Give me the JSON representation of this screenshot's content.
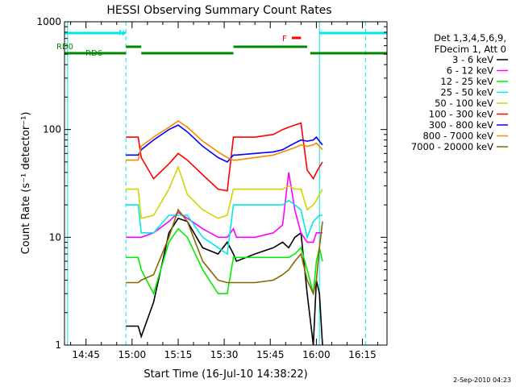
{
  "chart_data": {
    "type": "line",
    "title": "HESSI Observing Summary Count Rates",
    "xlabel": "Start Time (16-Jul-10 14:38:22)",
    "ylabel": "Count Rate (s⁻¹ detector⁻¹)",
    "ylim": [
      1,
      1000
    ],
    "yscale": "log",
    "xlim": [
      "14:38",
      "16:23"
    ],
    "x_ticks": [
      "14:45",
      "15:00",
      "15:15",
      "15:30",
      "15:45",
      "16:00",
      "16:15"
    ],
    "y_ticks": [
      "1",
      "10",
      "100",
      "1000"
    ],
    "legend_position": "right",
    "legend_header": [
      "Det 1,3,4,5,6,9,",
      "FDecim 1, Att 0"
    ],
    "timestamp": "2-Sep-2010 04:23",
    "x": [
      "14:38",
      "14:58",
      "14:59",
      "15:02",
      "15:03",
      "15:07",
      "15:12",
      "15:15",
      "15:18",
      "15:23",
      "15:28",
      "15:31",
      "15:33",
      "15:34",
      "15:40",
      "15:46",
      "15:49",
      "15:51",
      "15:53",
      "15:55",
      "15:57",
      "15:59",
      "16:00",
      "16:01",
      "16:02"
    ],
    "series": [
      {
        "name": "3 - 6 keV",
        "color": "#000000",
        "values": [
          null,
          1.5,
          1.5,
          1.5,
          1.2,
          2.5,
          11,
          15,
          14,
          8,
          7,
          9,
          7,
          6,
          7,
          8,
          9,
          8,
          10,
          11,
          3,
          1,
          4,
          3,
          1
        ]
      },
      {
        "name": "6 - 12 keV",
        "color": "#ff00ff",
        "values": [
          null,
          10,
          10,
          10,
          10,
          11,
          14,
          17,
          15,
          12,
          10,
          10,
          12,
          10,
          10,
          11,
          13,
          40,
          18,
          11,
          9,
          9,
          11,
          11,
          11
        ]
      },
      {
        "name": "12 - 25 keV",
        "color": "#00ee00",
        "values": [
          null,
          6.5,
          6.5,
          6.5,
          5,
          3,
          9,
          12,
          10,
          5,
          3,
          3,
          6.5,
          6.5,
          6.5,
          6.5,
          6.5,
          6.5,
          7,
          8,
          5,
          3,
          6,
          8,
          6
        ]
      },
      {
        "name": "25 - 50 keV",
        "color": "#00e8e8",
        "values": [
          null,
          20,
          20,
          20,
          11,
          11,
          16,
          16,
          16,
          10,
          8,
          7,
          20,
          20,
          20,
          20,
          20,
          22,
          20,
          18,
          10,
          14,
          15,
          16,
          16
        ]
      },
      {
        "name": "50 - 100 keV",
        "color": "#d4d400",
        "values": [
          null,
          28,
          28,
          28,
          15,
          16,
          28,
          45,
          25,
          18,
          15,
          16,
          28,
          28,
          28,
          28,
          28,
          30,
          28,
          28,
          18,
          20,
          22,
          25,
          28
        ]
      },
      {
        "name": "100 - 300 keV",
        "color": "#ff0000",
        "values": [
          null,
          85,
          85,
          85,
          55,
          35,
          48,
          60,
          52,
          38,
          28,
          27,
          85,
          85,
          85,
          90,
          100,
          105,
          110,
          115,
          42,
          35,
          40,
          45,
          50
        ]
      },
      {
        "name": "300 - 800 keV",
        "color": "#0000ff",
        "values": [
          null,
          58,
          58,
          58,
          65,
          80,
          100,
          110,
          95,
          70,
          55,
          50,
          58,
          58,
          60,
          62,
          65,
          70,
          75,
          80,
          78,
          80,
          85,
          78,
          72
        ]
      },
      {
        "name": "800 - 7000 keV",
        "color": "#ff8800",
        "values": [
          null,
          52,
          52,
          52,
          70,
          85,
          105,
          120,
          105,
          78,
          62,
          55,
          52,
          52,
          55,
          58,
          62,
          65,
          68,
          72,
          70,
          72,
          75,
          70,
          65
        ]
      },
      {
        "name": "7000 - 20000 keV",
        "color": "#886600",
        "values": [
          null,
          3.8,
          3.8,
          3.8,
          4,
          4.5,
          10,
          18,
          14,
          6,
          4,
          3.8,
          3.8,
          3.8,
          3.8,
          4,
          4.5,
          5,
          6,
          7,
          4,
          3,
          4,
          8,
          14
        ]
      }
    ],
    "annotations": [
      {
        "text": "N",
        "color": "#00e8e8"
      },
      {
        "text": "RD0",
        "color": "#008800"
      },
      {
        "text": "RD6",
        "color": "#008800"
      },
      {
        "text": "F",
        "color": "#ff0000"
      }
    ],
    "state_bars": [
      {
        "name": "N",
        "color": "#00e8e8",
        "segments": [
          [
            "14:38",
            "14:58"
          ],
          [
            "16:01",
            "16:23"
          ]
        ]
      },
      {
        "name": "RD0",
        "color": "#008800",
        "segments": [
          [
            "14:58",
            "15:03"
          ],
          [
            "15:33",
            "15:57"
          ]
        ]
      },
      {
        "name": "RD6",
        "color": "#008800",
        "segments": [
          [
            "14:38",
            "14:58"
          ],
          [
            "15:03",
            "15:33"
          ],
          [
            "15:58",
            "16:23"
          ]
        ]
      },
      {
        "name": "F",
        "color": "#ff0000",
        "segments": [
          [
            "15:52",
            "15:55"
          ]
        ]
      }
    ],
    "vertical_lines": [
      {
        "x": "14:39",
        "color": "#00e8e8",
        "style": "solid"
      },
      {
        "x": "14:58",
        "color": "#00e8e8",
        "style": "dashed"
      },
      {
        "x": "16:01",
        "color": "#00e8e8",
        "style": "solid"
      },
      {
        "x": "16:16",
        "color": "#00e8e8",
        "style": "dashed"
      }
    ]
  }
}
